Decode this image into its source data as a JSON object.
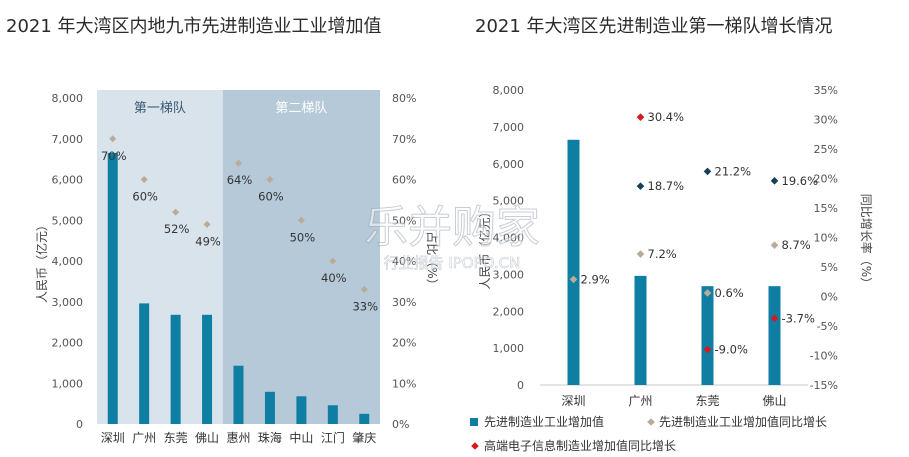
{
  "chart_data": [
    {
      "type": "bar",
      "title": "2021 年大湾区内地九市先进制造业工业增加值",
      "categories": [
        "深圳",
        "广州",
        "东莞",
        "佛山",
        "惠州",
        "珠海",
        "中山",
        "江门",
        "肇庆"
      ],
      "series": [
        {
          "axis": "left",
          "type": "bar",
          "values": [
            6650,
            2960,
            2680,
            2680,
            1430,
            790,
            680,
            460,
            250
          ]
        },
        {
          "axis": "right",
          "type": "scatter",
          "values": [
            70,
            60,
            52,
            49,
            64,
            60,
            50,
            40,
            33
          ]
        }
      ],
      "point_labels": [
        "70%",
        "60%",
        "52%",
        "49%",
        "64%",
        "60%",
        "50%",
        "40%",
        "33%"
      ],
      "groups": [
        {
          "label": "第一梯队",
          "from": 0,
          "to": 3
        },
        {
          "label": "第二梯队",
          "from": 4,
          "to": 8
        }
      ],
      "ylabel": "人民币（亿元）",
      "y2label": "占比（%）",
      "ylim": [
        0,
        8000
      ],
      "y2lim": [
        0,
        80
      ],
      "yticks": [
        "0",
        "1,000",
        "2,000",
        "3,000",
        "4,000",
        "5,000",
        "6,000",
        "7,000",
        "8,000"
      ],
      "y2ticks": [
        "0%",
        "10%",
        "20%",
        "30%",
        "40%",
        "50%",
        "60%",
        "70%",
        "80%"
      ],
      "colors": {
        "bar": "#0e7ea3",
        "marker": "#b9ab97",
        "group1_bg": "#d9e3ec",
        "group2_bg": "#b6c9d9",
        "group_text": "#ffffff"
      }
    },
    {
      "type": "bar",
      "title": "2021 年大湾区先进制造业第一梯队增长情况",
      "categories": [
        "深圳",
        "广州",
        "东莞",
        "佛山"
      ],
      "series": [
        {
          "name": "先进制造业工业增加值",
          "axis": "left",
          "type": "bar",
          "values": [
            6650,
            2960,
            2680,
            2680
          ]
        },
        {
          "name": "先进制造业工业增加值同比增长",
          "axis": "right",
          "type": "scatter",
          "values": [
            2.9,
            7.2,
            0.6,
            8.7
          ],
          "labels": [
            "2.9%",
            "7.2%",
            "0.6%",
            "8.7%"
          ]
        },
        {
          "name": "高端电子信息制造业增加值同比增长",
          "axis": "right",
          "type": "scatter",
          "values": [
            null,
            30.4,
            -9.0,
            -3.7
          ],
          "labels": [
            "",
            "30.4%",
            "-9.0%",
            "-3.7%"
          ]
        },
        {
          "axis": "right",
          "type": "scatter",
          "values": [
            null,
            18.7,
            21.2,
            19.6
          ],
          "labels": [
            "",
            "18.7%",
            "21.2%",
            "19.6%"
          ]
        }
      ],
      "ylabel": "人民币（亿元）",
      "y2label": "同比增长率（%）",
      "ylim": [
        0,
        8000
      ],
      "y2lim": [
        -15,
        35
      ],
      "yticks": [
        "0",
        "1,000",
        "2,000",
        "3,000",
        "4,000",
        "5,000",
        "6,000",
        "7,000",
        "8,000"
      ],
      "y2ticks": [
        "-15%",
        "-10%",
        "-5%",
        "0%",
        "5%",
        "10%",
        "15%",
        "20%",
        "25%",
        "30%",
        "35%"
      ],
      "legend_position": "bottom",
      "colors": {
        "bar": "#0e7ea3",
        "gray": "#b9ab97",
        "red": "#d7191c",
        "navy": "#16405a"
      }
    }
  ],
  "watermark": {
    "main": "乐并购家",
    "sub": "行业报告 IPOPO.CN"
  }
}
